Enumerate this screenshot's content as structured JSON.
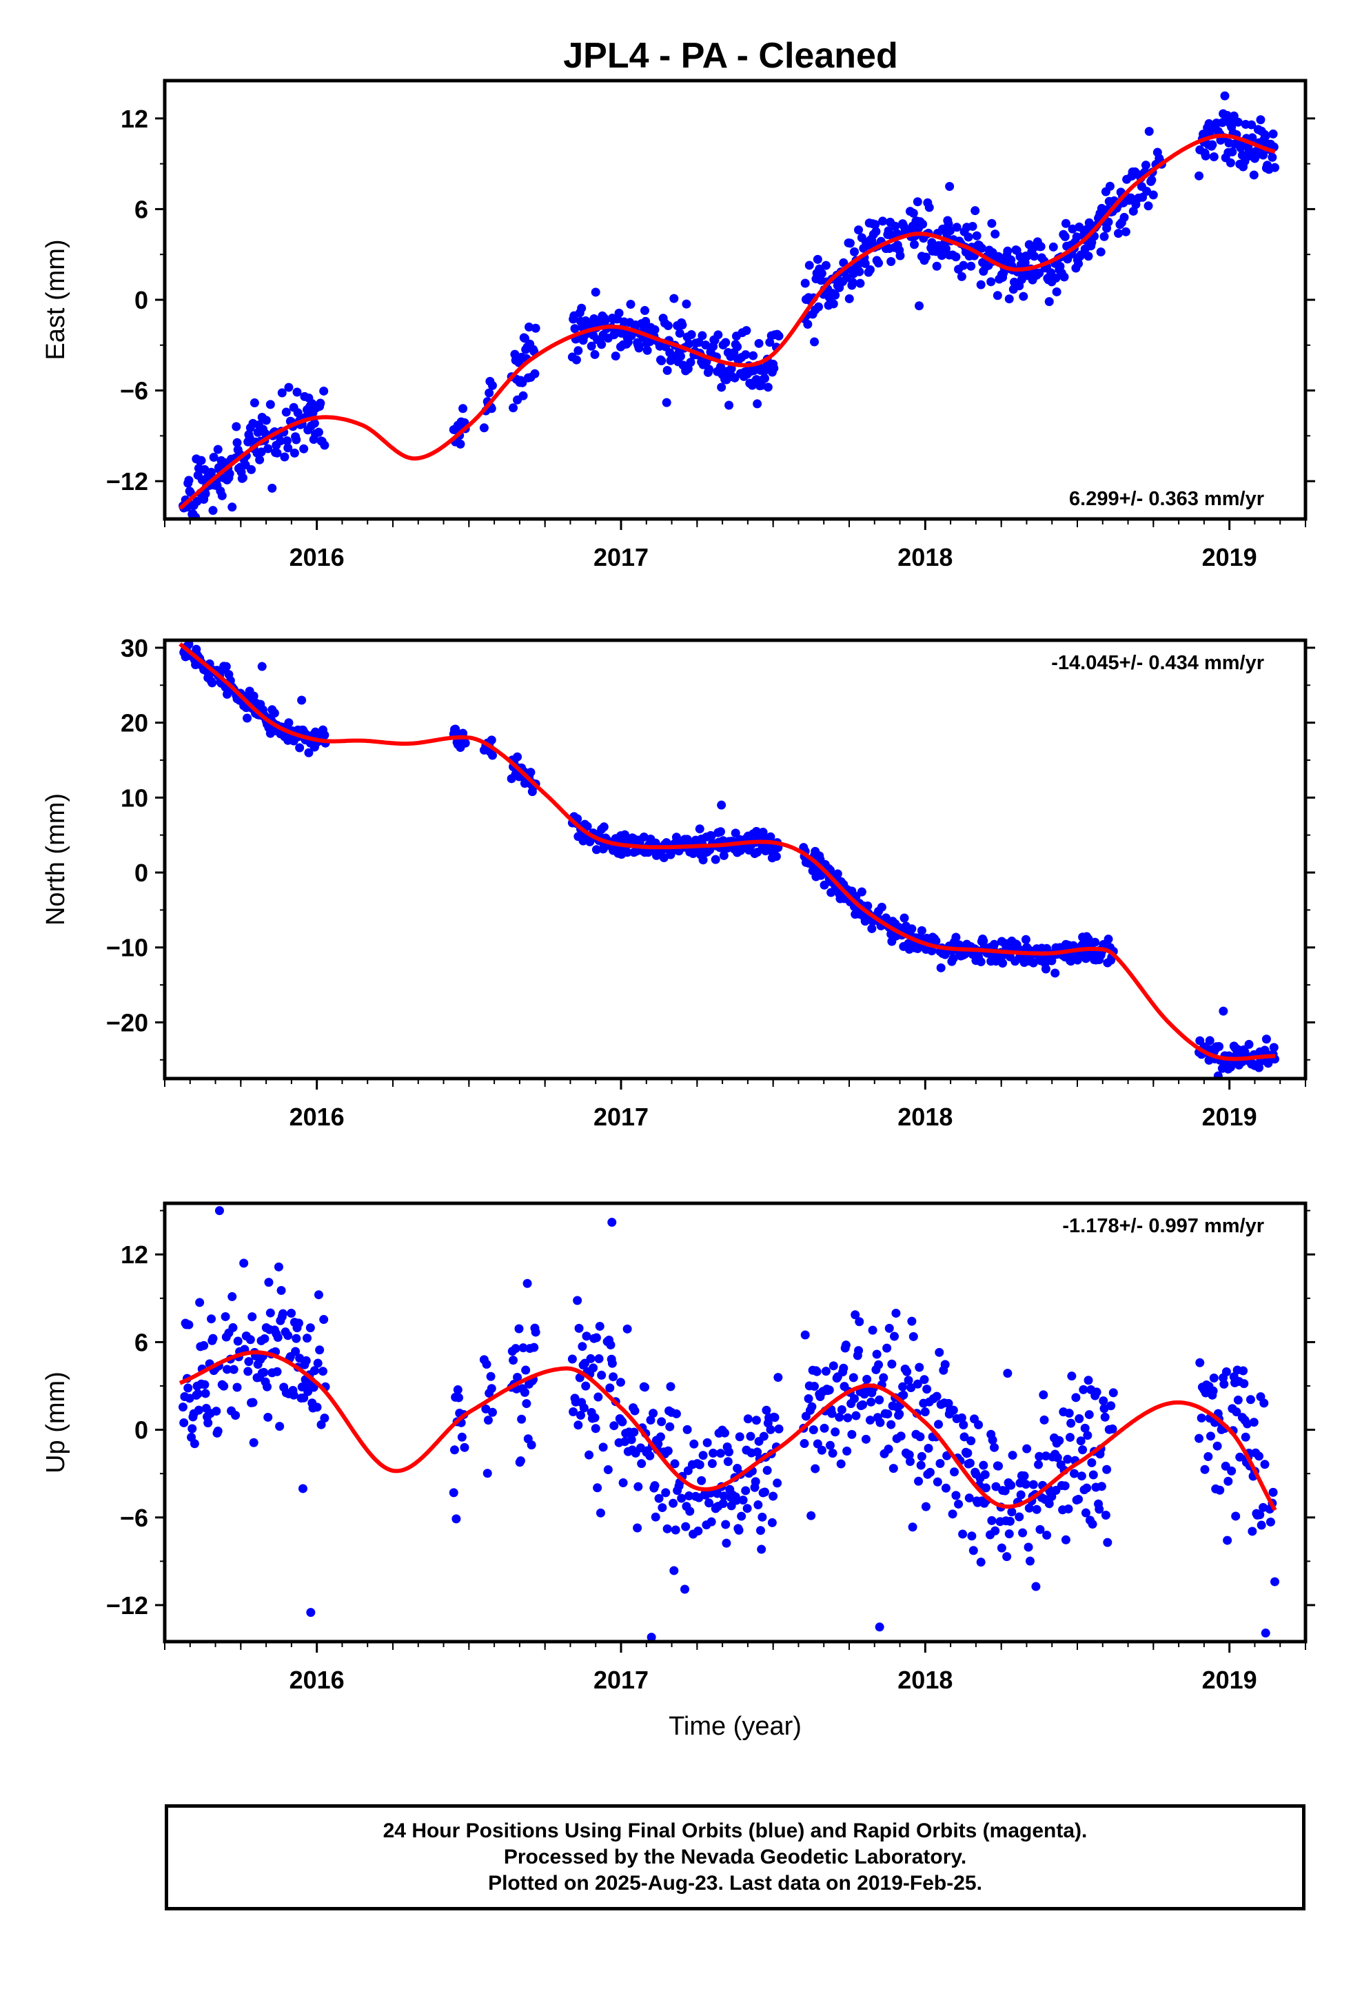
{
  "title": "JPL4  - PA - Cleaned",
  "colors": {
    "points": "#0000ff",
    "fit": "#ff0000",
    "frame": "#000000"
  },
  "footer": {
    "line1": "24 Hour Positions Using Final Orbits (blue) and Rapid Orbits (magenta).",
    "line2": "Processed by the Nevada Geodetic Laboratory.",
    "line3": "Plotted on 2025-Aug-23. Last data on 2019-Feb-25."
  },
  "chart_data": [
    {
      "type": "scatter",
      "component": "east",
      "ylabel": "East (mm)",
      "xlim": [
        2015.5,
        2019.25
      ],
      "ylim": [
        -14.5,
        14.5
      ],
      "xticks": [
        2016,
        2017,
        2018,
        2019
      ],
      "xtick_labels": [
        "2016",
        "2017",
        "2018",
        "2019"
      ],
      "yticks": [
        -12,
        -6,
        0,
        6,
        12
      ],
      "ytick_labels": [
        "−12",
        "−6",
        "0",
        "6",
        "12"
      ],
      "rate_text": "6.299+/- 0.363 mm/yr",
      "rate_position": "bottom-right",
      "data_segments": [
        [
          2015.56,
          2016.03
        ],
        [
          2016.45,
          2016.49
        ],
        [
          2016.55,
          2016.58
        ],
        [
          2016.64,
          2016.72
        ],
        [
          2016.84,
          2017.52
        ],
        [
          2017.6,
          2018.78
        ],
        [
          2018.9,
          2019.15
        ]
      ],
      "fit": {
        "x": [
          2015.55,
          2015.7,
          2015.85,
          2016.0,
          2016.15,
          2016.32,
          2016.5,
          2016.7,
          2016.95,
          2017.15,
          2017.38,
          2017.5,
          2017.7,
          2017.95,
          2018.12,
          2018.3,
          2018.5,
          2018.7,
          2018.95,
          2019.15
        ],
        "y": [
          -13.8,
          -11.2,
          -9.0,
          -7.8,
          -8.3,
          -10.5,
          -8.3,
          -4.0,
          -1.8,
          -2.8,
          -4.3,
          -3.6,
          1.5,
          4.3,
          3.6,
          2.0,
          3.6,
          7.8,
          10.8,
          9.8
        ]
      },
      "noise_sd": 1.0,
      "outliers": [
        {
          "x": 2017.98,
          "y": -0.4
        },
        {
          "x": 2017.15,
          "y": -6.8
        },
        {
          "x": 2018.08,
          "y": 7.5
        }
      ]
    },
    {
      "type": "scatter",
      "component": "north",
      "ylabel": "North (mm)",
      "xlim": [
        2015.5,
        2019.25
      ],
      "ylim": [
        -27.5,
        31
      ],
      "xticks": [
        2016,
        2017,
        2018,
        2019
      ],
      "xtick_labels": [
        "2016",
        "2017",
        "2018",
        "2019"
      ],
      "yticks": [
        -20,
        -10,
        0,
        10,
        20,
        30
      ],
      "ytick_labels": [
        "−20",
        "−10",
        "0",
        "10",
        "20",
        "30"
      ],
      "rate_text": "-14.045+/- 0.434 mm/yr",
      "rate_position": "top-right",
      "data_segments": [
        [
          2015.56,
          2016.03
        ],
        [
          2016.45,
          2016.49
        ],
        [
          2016.55,
          2016.58
        ],
        [
          2016.64,
          2016.72
        ],
        [
          2016.84,
          2017.52
        ],
        [
          2017.6,
          2018.62
        ],
        [
          2018.9,
          2019.15
        ]
      ],
      "fit": {
        "x": [
          2015.55,
          2015.7,
          2015.85,
          2016.0,
          2016.15,
          2016.3,
          2016.5,
          2016.6,
          2016.75,
          2016.9,
          2017.05,
          2017.3,
          2017.5,
          2017.62,
          2017.8,
          2018.0,
          2018.2,
          2018.4,
          2018.55,
          2018.62,
          2018.8,
          2018.95,
          2019.15
        ],
        "y": [
          30.5,
          25.5,
          20.0,
          17.7,
          17.6,
          17.2,
          18.0,
          16.0,
          10.5,
          5.0,
          3.5,
          3.6,
          4.0,
          2.0,
          -5.0,
          -9.5,
          -10.4,
          -10.8,
          -10.2,
          -11.0,
          -20.0,
          -24.5,
          -24.5
        ]
      },
      "noise_sd": 0.85,
      "outliers": [
        {
          "x": 2015.82,
          "y": 27.5
        },
        {
          "x": 2015.95,
          "y": 23.0
        },
        {
          "x": 2017.33,
          "y": 9.0
        },
        {
          "x": 2018.98,
          "y": -18.5
        }
      ]
    },
    {
      "type": "scatter",
      "component": "up",
      "ylabel": "Up (mm)",
      "xlabel": "Time (year)",
      "xlim": [
        2015.5,
        2019.25
      ],
      "ylim": [
        -14.5,
        15.5
      ],
      "xticks": [
        2016,
        2017,
        2018,
        2019
      ],
      "xtick_labels": [
        "2016",
        "2017",
        "2018",
        "2019"
      ],
      "yticks": [
        -12,
        -6,
        0,
        6,
        12
      ],
      "ytick_labels": [
        "−12",
        "−6",
        "0",
        "6",
        "12"
      ],
      "rate_text": "-1.178+/- 0.997 mm/yr",
      "rate_position": "top-right",
      "data_segments": [
        [
          2015.56,
          2016.03
        ],
        [
          2016.45,
          2016.49
        ],
        [
          2016.55,
          2016.58
        ],
        [
          2016.64,
          2016.72
        ],
        [
          2016.84,
          2017.52
        ],
        [
          2017.6,
          2018.62
        ],
        [
          2018.9,
          2019.15
        ]
      ],
      "fit": {
        "x": [
          2015.55,
          2015.8,
          2016.0,
          2016.25,
          2016.5,
          2016.82,
          2017.0,
          2017.25,
          2017.5,
          2017.8,
          2018.0,
          2018.25,
          2018.5,
          2018.8,
          2019.0,
          2019.15
        ],
        "y": [
          3.2,
          5.3,
          3.2,
          -2.8,
          1.2,
          4.2,
          1.5,
          -4.0,
          -1.5,
          3.0,
          0.5,
          -5.2,
          -2.3,
          1.8,
          0.0,
          -5.5
        ]
      },
      "noise_sd": 2.8,
      "outliers": [
        {
          "x": 2015.68,
          "y": 15.0
        },
        {
          "x": 2016.97,
          "y": 14.2
        },
        {
          "x": 2015.98,
          "y": -12.5
        },
        {
          "x": 2017.1,
          "y": -14.2
        },
        {
          "x": 2017.85,
          "y": -13.5
        }
      ]
    }
  ]
}
